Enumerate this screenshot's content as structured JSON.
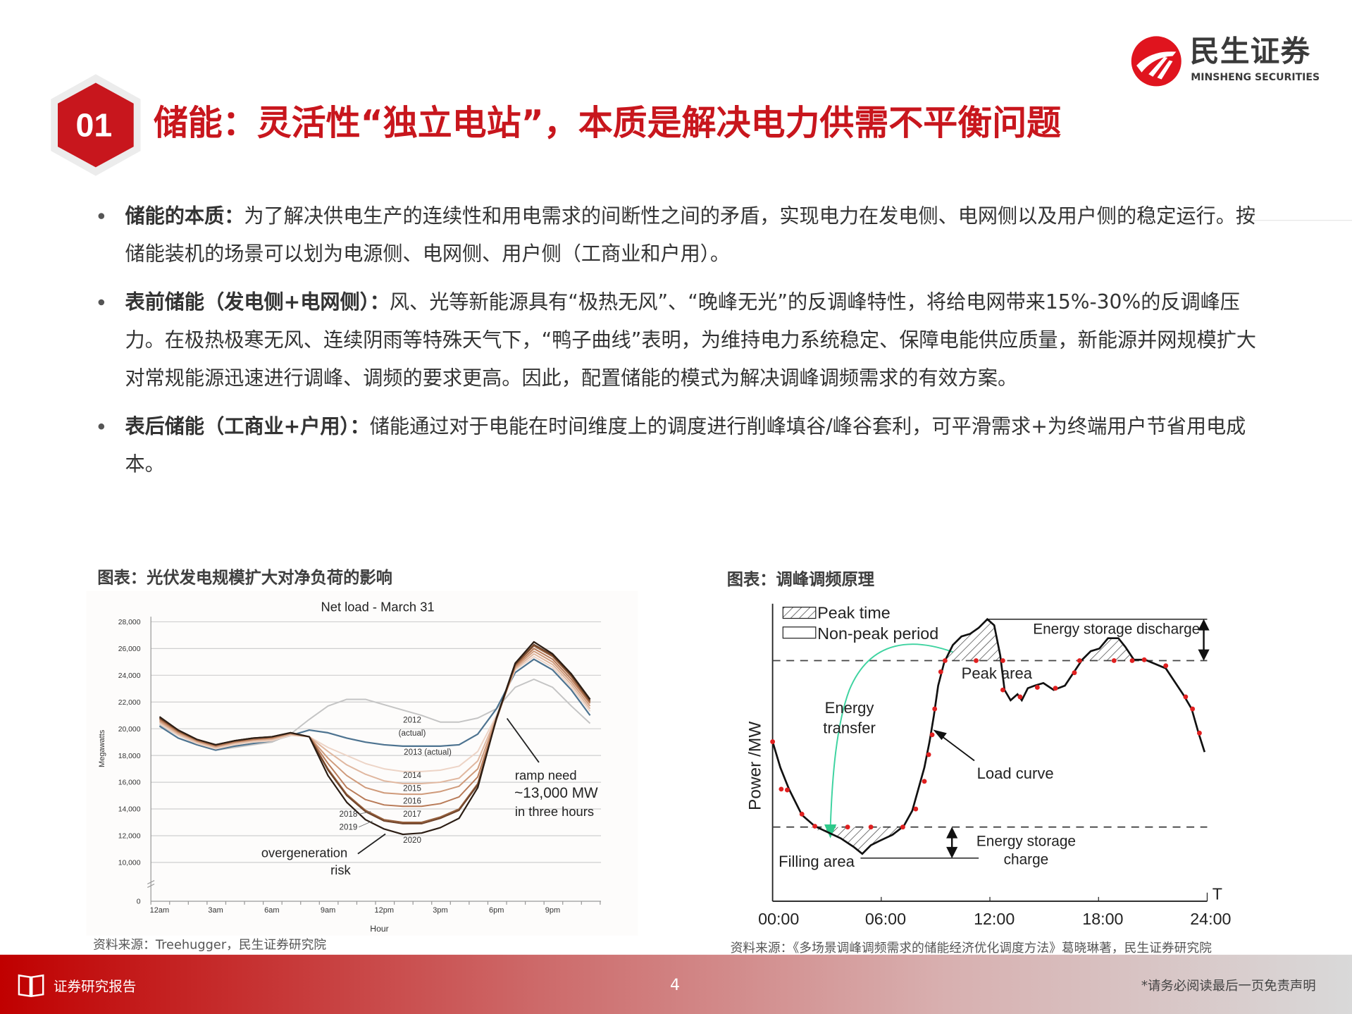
{
  "brand": {
    "name_cn": "民生证券",
    "name_en": "MINSHENG SECURITIES",
    "color": "#c8161d"
  },
  "section": {
    "number": "01",
    "title": "储能：灵活性“独立电站”，本质是解决电力供需不平衡问题"
  },
  "bullets": [
    {
      "lead": "储能的本质：",
      "text": "为了解决供电生产的连续性和用电需求的间断性之间的矛盾，实现电力在发电侧、电网侧以及用户侧的稳定运行。按储能装机的场景可以划为电源侧、电网侧、用户侧（工商业和户用）。"
    },
    {
      "lead": "表前储能（发电侧+电网侧）：",
      "text": "风、光等新能源具有“极热无风”、“晚峰无光”的反调峰特性，将给电网带来15%-30%的反调峰压力。在极热极寒无风、连续阴雨等特殊天气下，“鸭子曲线”表明，为维持电力系统稳定、保障电能供应质量，新能源并网规模扩大对常规能源迅速进行调峰、调频的要求更高。因此，配置储能的模式为解决调峰调频需求的有效方案。"
    },
    {
      "lead": "表后储能（工商业+户用）：",
      "text": "储能通过对于电能在时间维度上的调度进行削峰填谷/峰谷套利，可平滑需求+为终端用户节省用电成本。"
    }
  ],
  "figure_left": {
    "caption": "图表：光伏发电规模扩大对净负荷的影响",
    "source": "资料来源：Treehugger，民生证券研究院"
  },
  "figure_right": {
    "caption": "图表：调峰调频原理",
    "source": "资料来源：《多场景调峰调频需求的储能经济优化调度方法》葛晓琳著，民生证券研究院",
    "legend_peak": "Peak time",
    "legend_nonpeak": "Non-peak period",
    "discharge": "Energy storage discharge",
    "peak_area": "Peak area",
    "energy_transfer_1": "Energy",
    "energy_transfer_2": "transfer",
    "load_curve": "Load curve",
    "charge_1": "Energy storage",
    "charge_2": "charge",
    "filling_area": "Filling area",
    "ylabel": "Power /MW",
    "xaxis_end": "T",
    "xticks": [
      "00:00",
      "06:00",
      "12:00",
      "18:00",
      "24:00"
    ],
    "arrow_color": "#3ed3a0",
    "point_color": "#e02020"
  },
  "chart_data": {
    "type": "line",
    "title": "Net load - March 31",
    "xlabel": "Hour",
    "ylabel": "Megawatts",
    "x": [
      0,
      1,
      2,
      3,
      4,
      5,
      6,
      7,
      8,
      9,
      10,
      11,
      12,
      13,
      14,
      15,
      16,
      17,
      18,
      19,
      20,
      21,
      22,
      23
    ],
    "xtick_labels": [
      "12am",
      "3am",
      "6am",
      "9am",
      "12pm",
      "3pm",
      "6pm",
      "9pm"
    ],
    "ytick_labels": [
      "0",
      "10,000",
      "12,000",
      "14,000",
      "16,000",
      "18,000",
      "20,000",
      "22,000",
      "24,000",
      "26,000",
      "28,000"
    ],
    "ylim": [
      0,
      28000
    ],
    "y_axis_break": true,
    "grid": true,
    "series": [
      {
        "name": "2012 (actual)",
        "color": "#c4c4c4",
        "values": [
          20300,
          19500,
          18900,
          18400,
          18600,
          18800,
          19000,
          19600,
          20700,
          21700,
          22200,
          22200,
          21800,
          21400,
          21000,
          20500,
          20500,
          20800,
          21500,
          23100,
          23700,
          23100,
          21700,
          20400
        ]
      },
      {
        "name": "2013 (actual)",
        "color": "#4d7390",
        "values": [
          20200,
          19300,
          18800,
          18400,
          18700,
          18900,
          19100,
          19500,
          19900,
          19700,
          19300,
          19000,
          18800,
          18700,
          18700,
          18700,
          18800,
          19600,
          21500,
          24200,
          25200,
          24400,
          22900,
          21000
        ]
      },
      {
        "name": "2014",
        "color": "#edd4c6",
        "values": [
          20400,
          19500,
          18900,
          18500,
          18800,
          19000,
          19100,
          19500,
          19400,
          18600,
          18000,
          17400,
          17000,
          16800,
          16800,
          16900,
          17200,
          18300,
          21000,
          24400,
          25400,
          24600,
          23100,
          21300
        ]
      },
      {
        "name": "2015",
        "color": "#e0b79f",
        "values": [
          20500,
          19600,
          19000,
          18600,
          18900,
          19100,
          19200,
          19600,
          19400,
          18300,
          17300,
          16600,
          16100,
          15900,
          15900,
          16000,
          16300,
          17600,
          20900,
          24500,
          25600,
          24800,
          23300,
          21500
        ]
      },
      {
        "name": "2016",
        "color": "#cf9a7a",
        "values": [
          20600,
          19700,
          19100,
          18700,
          19000,
          19200,
          19300,
          19600,
          19400,
          17800,
          16500,
          15600,
          15200,
          15100,
          15100,
          15300,
          15700,
          17000,
          20800,
          24600,
          25800,
          25000,
          23500,
          21700
        ]
      },
      {
        "name": "2017",
        "color": "#b87a57",
        "values": [
          20700,
          19800,
          19100,
          18700,
          19000,
          19200,
          19300,
          19700,
          19400,
          17400,
          15600,
          14700,
          14300,
          14200,
          14200,
          14400,
          14900,
          16400,
          20700,
          24700,
          26000,
          25200,
          23700,
          21900
        ]
      },
      {
        "name": "2018",
        "color": "#96603d",
        "values": [
          20800,
          19800,
          19200,
          18800,
          19100,
          19300,
          19400,
          19700,
          19400,
          17000,
          15100,
          13900,
          13200,
          13000,
          13000,
          13400,
          14000,
          15900,
          20700,
          24800,
          26200,
          25400,
          23900,
          22000
        ]
      },
      {
        "name": "2019",
        "color": "#70442a",
        "values": [
          20800,
          19900,
          19200,
          18800,
          19100,
          19300,
          19400,
          19700,
          19400,
          16900,
          15000,
          13800,
          13100,
          12900,
          12900,
          13300,
          13900,
          15800,
          20700,
          24800,
          26300,
          25500,
          24000,
          22100
        ]
      },
      {
        "name": "2020",
        "color": "#2b1d14",
        "values": [
          20900,
          19900,
          19200,
          18800,
          19100,
          19300,
          19400,
          19700,
          19400,
          16500,
          14500,
          13200,
          12500,
          12100,
          12200,
          12600,
          13300,
          15600,
          20800,
          24900,
          26500,
          25600,
          24100,
          22200
        ]
      }
    ],
    "annotations": {
      "y2012": "2012",
      "y2012_sub": "(actual)",
      "y2013": "2013 (actual)",
      "y2014": "2014",
      "y2015": "2015",
      "y2016": "2016",
      "y2017": "2017",
      "y2018": "2018",
      "y2019": "2019",
      "y2020": "2020",
      "overgen_1": "overgeneration",
      "overgen_2": "risk",
      "ramp_1": "ramp need",
      "ramp_2": "~13,000 MW",
      "ramp_3": "in three hours"
    }
  },
  "footer": {
    "label": "证券研究报告",
    "page": "4",
    "disclaimer": "*请务必阅读最后一页免责声明",
    "icon": "book-icon"
  }
}
